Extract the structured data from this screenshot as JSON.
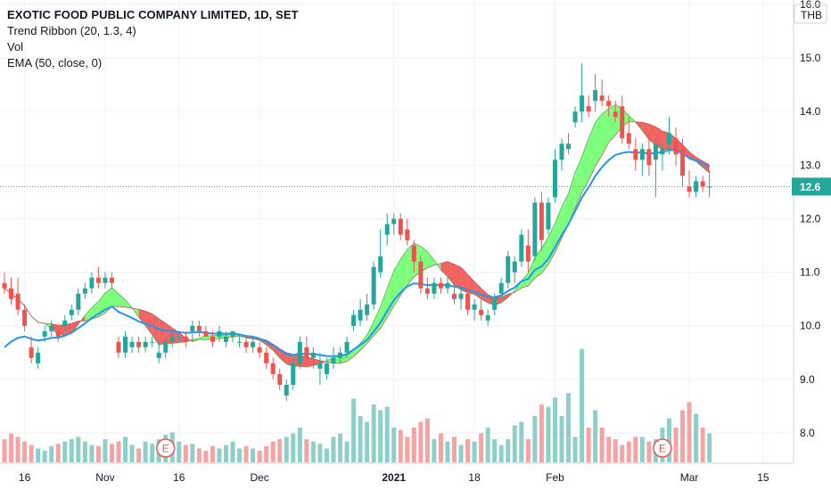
{
  "legend": {
    "title": "EXOTIC FOOD PUBLIC COMPANY LIMITED, 1D, SET",
    "indicator1": "Trend Ribbon (20, 1.3, 4)",
    "indicator2": "Vol",
    "indicator3": "EMA (50, close, 0)"
  },
  "currency": "THB",
  "last_price_label": "12.6",
  "colors": {
    "up": "#26a69a",
    "down": "#ef5350",
    "ema": "#2196f3",
    "ribbon_up": "#66ff66",
    "ribbon_down": "#ef5350",
    "vol_up": "#8ed0c9",
    "vol_down": "#f5a3a3",
    "last_price": "#26a69a"
  },
  "chart_data": {
    "type": "candlestick",
    "title": "EXOTIC FOOD PUBLIC COMPANY LIMITED, 1D, SET",
    "ylim": [
      7.8,
      16.0
    ],
    "y_ticks": [
      "8.0",
      "9.0",
      "10.0",
      "11.0",
      "12.0",
      "13.0",
      "14.0",
      "15.0",
      "16.0"
    ],
    "x_tick_labels": [
      "16",
      "Nov",
      "16",
      "Dec",
      "2021",
      "18",
      "Feb",
      "Mar",
      "15"
    ],
    "event_markers": [
      "E",
      "E"
    ],
    "last_price": 12.6,
    "candles": [
      [
        10.8,
        11.0,
        10.6,
        10.7
      ],
      [
        10.7,
        10.9,
        10.4,
        10.5
      ],
      [
        10.6,
        10.9,
        10.2,
        10.3
      ],
      [
        10.3,
        10.4,
        9.9,
        10.0
      ],
      [
        9.6,
        9.8,
        9.3,
        9.4
      ],
      [
        9.3,
        9.6,
        9.2,
        9.5
      ],
      [
        9.8,
        10.0,
        9.7,
        9.9
      ],
      [
        9.9,
        10.1,
        9.8,
        10.0
      ],
      [
        9.9,
        10.0,
        9.7,
        9.8
      ],
      [
        10.0,
        10.2,
        9.9,
        10.1
      ],
      [
        10.2,
        10.4,
        10.1,
        10.3
      ],
      [
        10.3,
        10.7,
        10.2,
        10.6
      ],
      [
        10.6,
        10.8,
        10.5,
        10.7
      ],
      [
        10.7,
        11.0,
        10.6,
        10.9
      ],
      [
        10.9,
        11.1,
        10.7,
        10.8
      ],
      [
        10.8,
        11.0,
        10.7,
        10.9
      ],
      [
        10.9,
        11.0,
        10.7,
        10.8
      ],
      [
        9.7,
        9.8,
        9.4,
        9.5
      ],
      [
        9.5,
        9.9,
        9.4,
        9.8
      ],
      [
        9.6,
        9.8,
        9.5,
        9.7
      ],
      [
        9.7,
        9.8,
        9.5,
        9.6
      ],
      [
        9.6,
        9.8,
        9.5,
        9.7
      ],
      [
        9.7,
        9.8,
        9.6,
        9.7
      ],
      [
        9.4,
        9.7,
        9.3,
        9.5
      ],
      [
        9.5,
        9.8,
        9.4,
        9.7
      ],
      [
        9.7,
        9.9,
        9.6,
        9.8
      ],
      [
        9.8,
        9.9,
        9.7,
        9.8
      ],
      [
        9.8,
        9.9,
        9.6,
        9.7
      ],
      [
        9.9,
        10.1,
        9.7,
        10.0
      ],
      [
        10.0,
        10.1,
        9.8,
        9.9
      ],
      [
        9.9,
        10.0,
        9.8,
        9.8
      ],
      [
        9.8,
        9.9,
        9.6,
        9.7
      ],
      [
        9.8,
        10.0,
        9.7,
        9.9
      ],
      [
        9.7,
        9.9,
        9.6,
        9.8
      ],
      [
        9.8,
        9.9,
        9.7,
        9.9
      ],
      [
        9.7,
        9.8,
        9.6,
        9.7
      ],
      [
        9.7,
        9.8,
        9.5,
        9.6
      ],
      [
        9.6,
        9.8,
        9.5,
        9.7
      ],
      [
        9.6,
        9.7,
        9.4,
        9.5
      ],
      [
        9.5,
        9.6,
        9.2,
        9.3
      ],
      [
        9.3,
        9.4,
        9.0,
        9.1
      ],
      [
        9.1,
        9.2,
        8.8,
        8.9
      ],
      [
        8.7,
        9.0,
        8.6,
        8.9
      ],
      [
        8.9,
        9.4,
        8.8,
        9.3
      ],
      [
        9.3,
        9.8,
        9.2,
        9.7
      ],
      [
        9.6,
        9.8,
        9.3,
        9.4
      ],
      [
        9.4,
        9.6,
        9.2,
        9.5
      ],
      [
        9.2,
        9.5,
        8.9,
        9.3
      ],
      [
        9.1,
        9.4,
        9.0,
        9.3
      ],
      [
        9.3,
        9.6,
        9.2,
        9.4
      ],
      [
        9.4,
        9.6,
        9.3,
        9.5
      ],
      [
        9.5,
        9.8,
        9.4,
        9.7
      ],
      [
        10.0,
        10.3,
        9.9,
        10.2
      ],
      [
        10.1,
        10.5,
        10.0,
        10.3
      ],
      [
        10.2,
        10.6,
        10.1,
        10.4
      ],
      [
        10.4,
        11.2,
        10.3,
        11.1
      ],
      [
        11.0,
        11.8,
        10.9,
        11.3
      ],
      [
        11.7,
        12.1,
        11.5,
        11.9
      ],
      [
        11.9,
        12.1,
        11.7,
        12.0
      ],
      [
        12.0,
        12.1,
        11.6,
        11.7
      ],
      [
        11.8,
        12.0,
        11.5,
        11.6
      ],
      [
        11.5,
        11.6,
        11.0,
        11.2
      ],
      [
        11.2,
        11.3,
        10.6,
        10.7
      ],
      [
        10.7,
        10.9,
        10.5,
        10.6
      ],
      [
        10.6,
        10.9,
        10.5,
        10.8
      ],
      [
        10.8,
        10.9,
        10.6,
        10.7
      ],
      [
        10.7,
        10.9,
        10.6,
        10.8
      ],
      [
        10.6,
        10.8,
        10.4,
        10.5
      ],
      [
        10.5,
        10.7,
        10.3,
        10.6
      ],
      [
        10.6,
        10.7,
        10.2,
        10.3
      ],
      [
        10.3,
        10.5,
        10.1,
        10.4
      ],
      [
        10.3,
        10.5,
        10.1,
        10.2
      ],
      [
        10.1,
        10.3,
        10.0,
        10.2
      ],
      [
        10.3,
        10.6,
        10.2,
        10.5
      ],
      [
        10.6,
        10.9,
        10.5,
        10.8
      ],
      [
        10.8,
        11.4,
        10.7,
        11.3
      ],
      [
        11.0,
        11.3,
        10.8,
        11.2
      ],
      [
        11.2,
        11.8,
        11.1,
        11.7
      ],
      [
        11.5,
        11.8,
        11.0,
        11.2
      ],
      [
        11.3,
        12.4,
        11.2,
        12.3
      ],
      [
        12.3,
        12.5,
        11.4,
        11.6
      ],
      [
        11.8,
        12.4,
        11.7,
        12.3
      ],
      [
        12.4,
        13.3,
        12.3,
        13.1
      ],
      [
        13.1,
        13.5,
        12.9,
        13.4
      ],
      [
        13.3,
        13.6,
        13.2,
        13.4
      ],
      [
        13.8,
        14.1,
        13.7,
        14.0
      ],
      [
        14.0,
        14.9,
        13.8,
        14.3
      ],
      [
        14.1,
        14.3,
        13.9,
        14.0
      ],
      [
        14.2,
        14.7,
        14.0,
        14.4
      ],
      [
        14.3,
        14.6,
        14.1,
        14.2
      ],
      [
        14.2,
        14.3,
        13.9,
        14.1
      ],
      [
        14.0,
        14.2,
        13.8,
        13.9
      ],
      [
        14.1,
        14.3,
        13.4,
        13.5
      ],
      [
        13.6,
        13.9,
        13.3,
        13.4
      ],
      [
        13.3,
        13.5,
        12.9,
        13.1
      ],
      [
        13.1,
        13.4,
        12.8,
        13.3
      ],
      [
        13.3,
        13.6,
        12.8,
        13.0
      ],
      [
        13.1,
        13.5,
        12.4,
        13.4
      ],
      [
        13.2,
        13.4,
        12.9,
        13.3
      ],
      [
        13.4,
        13.9,
        13.2,
        13.6
      ],
      [
        13.5,
        13.7,
        13.0,
        13.2
      ],
      [
        13.3,
        13.5,
        12.6,
        12.8
      ],
      [
        12.6,
        12.9,
        12.4,
        12.5
      ],
      [
        12.5,
        12.8,
        12.4,
        12.7
      ],
      [
        12.7,
        12.8,
        12.5,
        12.6
      ],
      [
        12.6,
        12.9,
        12.4,
        12.6
      ]
    ],
    "volume": [
      0.2,
      0.25,
      0.22,
      0.18,
      0.15,
      0.12,
      0.1,
      0.14,
      0.16,
      0.18,
      0.2,
      0.22,
      0.18,
      0.15,
      0.14,
      0.2,
      0.16,
      0.18,
      0.22,
      0.15,
      0.12,
      0.18,
      0.16,
      0.2,
      0.24,
      0.26,
      0.18,
      0.15,
      0.16,
      0.12,
      0.1,
      0.14,
      0.12,
      0.15,
      0.18,
      0.12,
      0.14,
      0.12,
      0.1,
      0.14,
      0.18,
      0.2,
      0.22,
      0.25,
      0.3,
      0.2,
      0.18,
      0.16,
      0.12,
      0.22,
      0.25,
      0.18,
      0.55,
      0.4,
      0.35,
      0.5,
      0.45,
      0.48,
      0.3,
      0.28,
      0.22,
      0.3,
      0.35,
      0.38,
      0.2,
      0.25,
      0.18,
      0.22,
      0.15,
      0.2,
      0.18,
      0.25,
      0.3,
      0.2,
      0.15,
      0.2,
      0.32,
      0.35,
      0.2,
      0.4,
      0.5,
      0.48,
      0.56,
      0.4,
      0.6,
      0.22,
      0.98,
      0.3,
      0.45,
      0.3,
      0.22,
      0.2,
      0.15,
      0.18,
      0.22,
      0.22,
      0.18,
      0.2,
      0.3,
      0.38,
      0.3,
      0.45,
      0.52,
      0.42,
      0.3,
      0.25
    ]
  }
}
